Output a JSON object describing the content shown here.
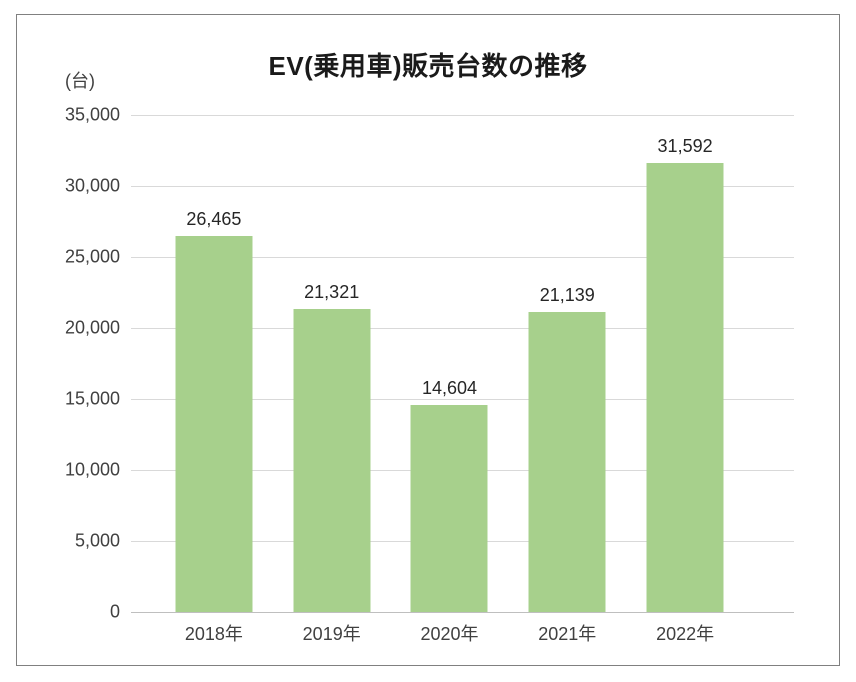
{
  "chart": {
    "title": "EV(乗用車)販売台数の推移",
    "unit_label": "(台)"
  },
  "chart_data": {
    "type": "bar",
    "title": "EV(乗用車)販売台数の推移",
    "categories": [
      "2018年",
      "2019年",
      "2020年",
      "2021年",
      "2022年"
    ],
    "values": [
      26465,
      21321,
      14604,
      21139,
      31592
    ],
    "data_labels": [
      "26,465",
      "21,321",
      "14,604",
      "21,139",
      "31,592"
    ],
    "xlabel": "",
    "ylabel": "(台)",
    "ylim": [
      0,
      35000
    ],
    "ytick_interval": 5000,
    "ytick_labels": [
      "0",
      "5,000",
      "10,000",
      "15,000",
      "20,000",
      "25,000",
      "30,000",
      "35,000"
    ],
    "grid": true,
    "legend": "none",
    "bar_color": "#A7D08C"
  },
  "colors": {
    "bar": "#A7D08C",
    "gridline": "#D9D9D9",
    "axis_line": "#BFBFBF",
    "frame_border": "#808080",
    "title_text": "#1A1A1A",
    "tick_text": "#404040",
    "data_label_text": "#262626",
    "background": "#FFFFFF"
  }
}
